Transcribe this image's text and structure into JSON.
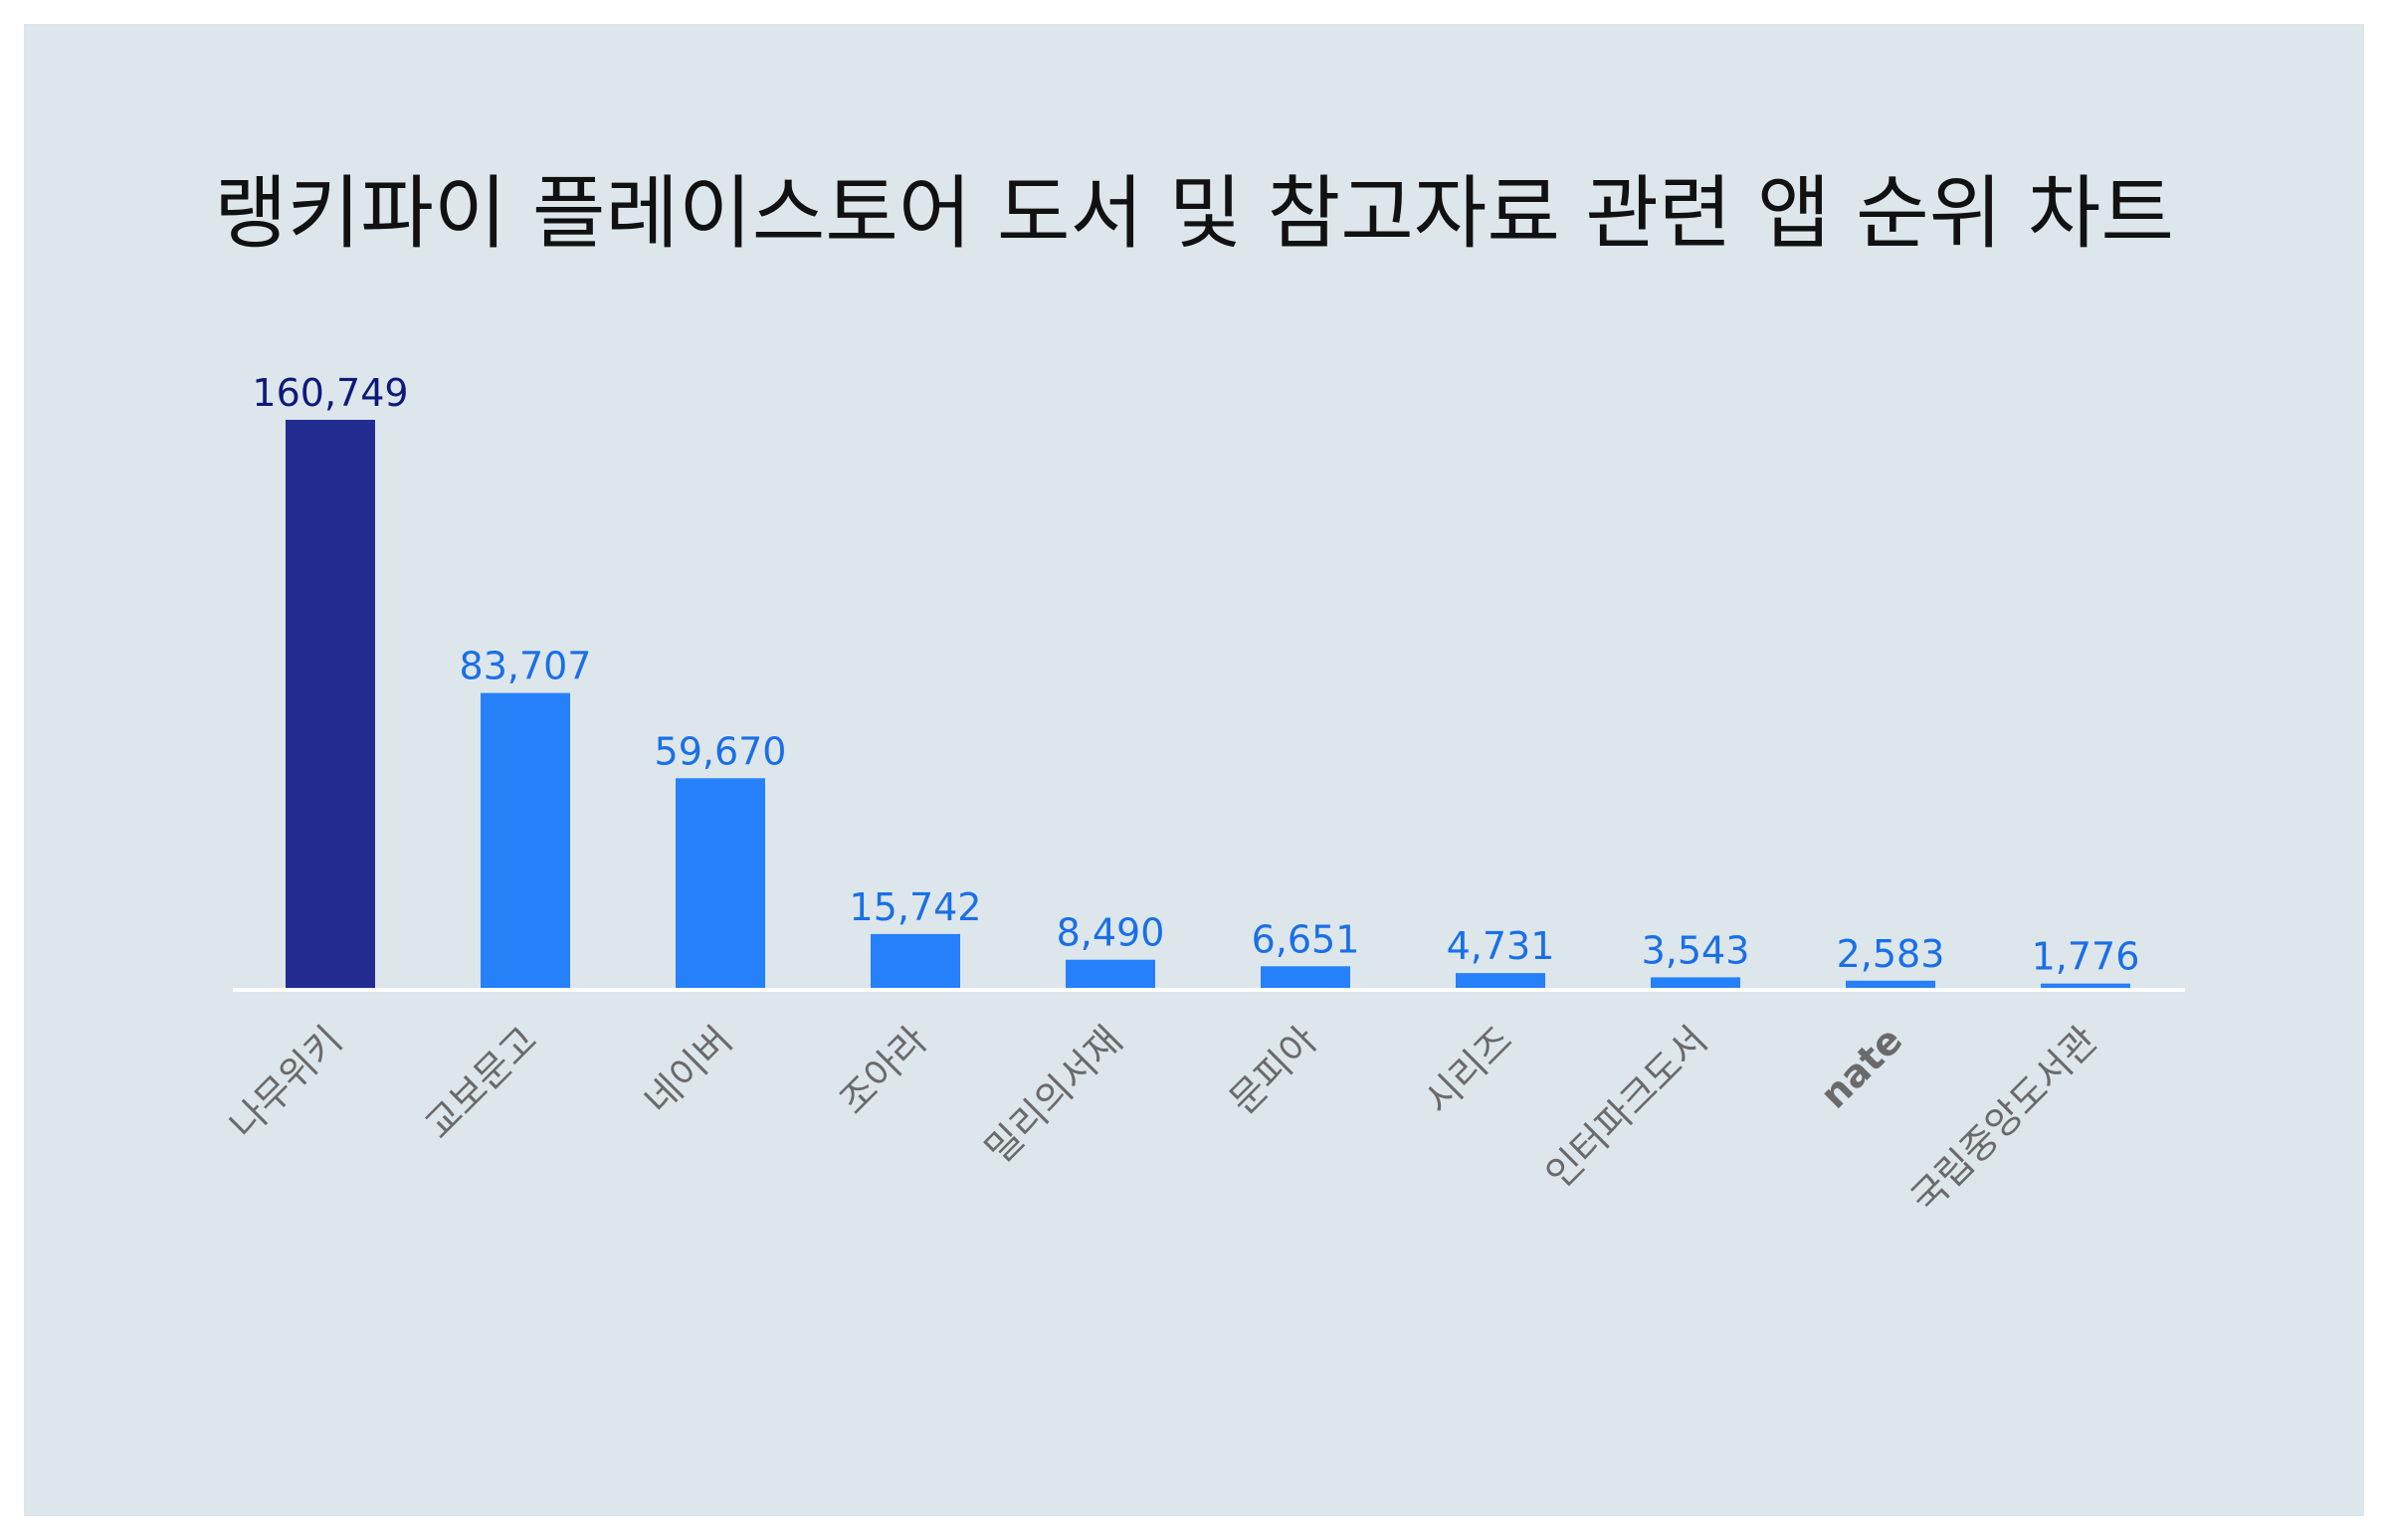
{
  "chart_data": {
    "type": "bar",
    "title": "랭키파이 플레이스토어 도서 및 참고자료 관련 앱 순위 차트",
    "categories": [
      "나무위키",
      "교보문고",
      "네이버",
      "조아라",
      "밀리의서재",
      "문피아",
      "시리즈",
      "인터파크도서",
      "nate",
      "국립중앙도서관"
    ],
    "values": [
      160749,
      83707,
      59670,
      15742,
      8490,
      6651,
      4731,
      3543,
      2583,
      1776
    ],
    "value_labels": [
      "160,749",
      "83,707",
      "59,670",
      "15,742",
      "8,490",
      "6,651",
      "4,731",
      "3,543",
      "2,583",
      "1,776"
    ],
    "ylim": [
      0,
      160749
    ],
    "grid": false,
    "colors": {
      "top_bar": "#232c91",
      "bar": "#2680fa",
      "top_label": "#0d1a7a",
      "label": "#1a6fe6",
      "axis": "#ffffff",
      "background": "#dce6eb"
    }
  }
}
